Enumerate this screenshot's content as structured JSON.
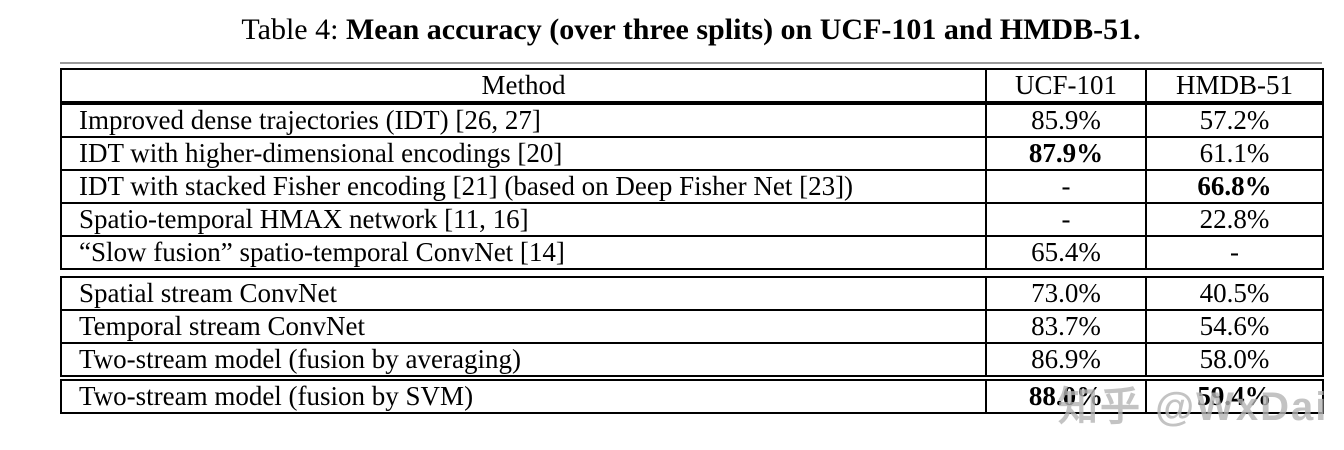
{
  "title": {
    "prefix": "Table 4: ",
    "bold": "Mean accuracy (over three splits) on UCF-101 and HMDB-51."
  },
  "table": {
    "columns": [
      "Method",
      "UCF-101",
      "HMDB-51"
    ],
    "sections": [
      {
        "rows": [
          {
            "method": "Improved dense trajectories (IDT) [26, 27]",
            "ucf": "85.9%",
            "hmdb": "57.2%",
            "ucf_bold": false,
            "hmdb_bold": false
          },
          {
            "method": "IDT with higher-dimensional encodings [20]",
            "ucf": "87.9%",
            "hmdb": "61.1%",
            "ucf_bold": true,
            "hmdb_bold": false
          },
          {
            "method": "IDT with stacked Fisher encoding [21] (based on Deep Fisher Net [23])",
            "ucf": "-",
            "hmdb": "66.8%",
            "ucf_bold": false,
            "hmdb_bold": true
          },
          {
            "method": "Spatio-temporal HMAX network [11, 16]",
            "ucf": "-",
            "hmdb": "22.8%",
            "ucf_bold": false,
            "hmdb_bold": false
          },
          {
            "method": "“Slow fusion” spatio-temporal ConvNet [14]",
            "ucf": "65.4%",
            "hmdb": "-",
            "ucf_bold": false,
            "hmdb_bold": false
          }
        ]
      },
      {
        "rows": [
          {
            "method": "Spatial stream ConvNet",
            "ucf": "73.0%",
            "hmdb": "40.5%",
            "ucf_bold": false,
            "hmdb_bold": false
          },
          {
            "method": "Temporal stream ConvNet",
            "ucf": "83.7%",
            "hmdb": "54.6%",
            "ucf_bold": false,
            "hmdb_bold": false
          },
          {
            "method": "Two-stream model (fusion by averaging)",
            "ucf": "86.9%",
            "hmdb": "58.0%",
            "ucf_bold": false,
            "hmdb_bold": false
          },
          {
            "method": "Two-stream model (fusion by SVM)",
            "ucf": "88.0%",
            "hmdb": "59.4%",
            "ucf_bold": true,
            "hmdb_bold": true,
            "emphasis_top": true
          }
        ]
      }
    ]
  },
  "watermark": "知乎 @WxDai",
  "colors": {
    "text": "#000000",
    "border": "#000000",
    "watermark_gray": "#b5b5b5"
  }
}
